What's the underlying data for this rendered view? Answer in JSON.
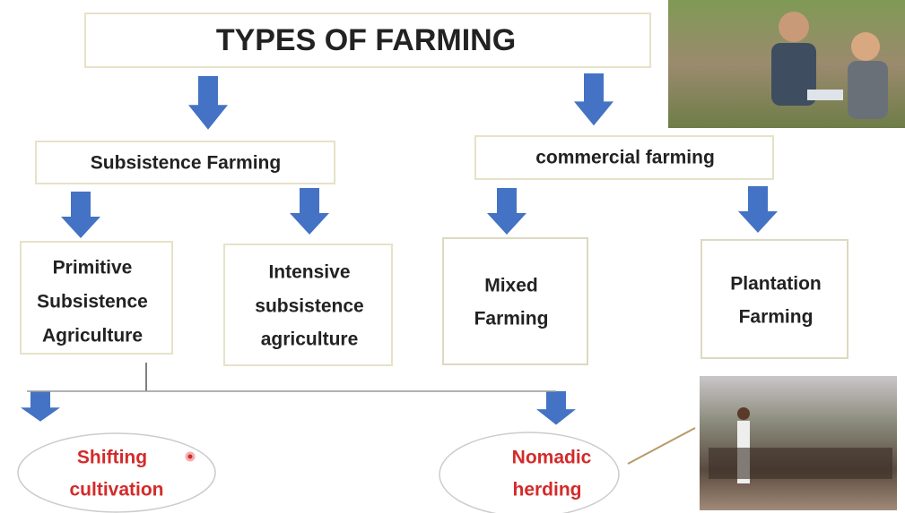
{
  "title": "TYPES OF FARMING",
  "nodes": [
    {
      "lines": [
        "Subsistence Farming"
      ]
    },
    {
      "lines": [
        "commercial farming"
      ]
    },
    {
      "lines": [
        "Primitive",
        "Subsistence",
        "Agriculture"
      ]
    },
    {
      "lines": [
        "Intensive",
        "subsistence",
        "agriculture"
      ]
    },
    {
      "lines": [
        "Mixed",
        "Farming"
      ]
    },
    {
      "lines": [
        "Plantation",
        "Farming"
      ]
    },
    {
      "lines": [
        "Shifting",
        "cultivation"
      ]
    },
    {
      "lines": [
        "Nomadic",
        "herding"
      ]
    }
  ]
}
